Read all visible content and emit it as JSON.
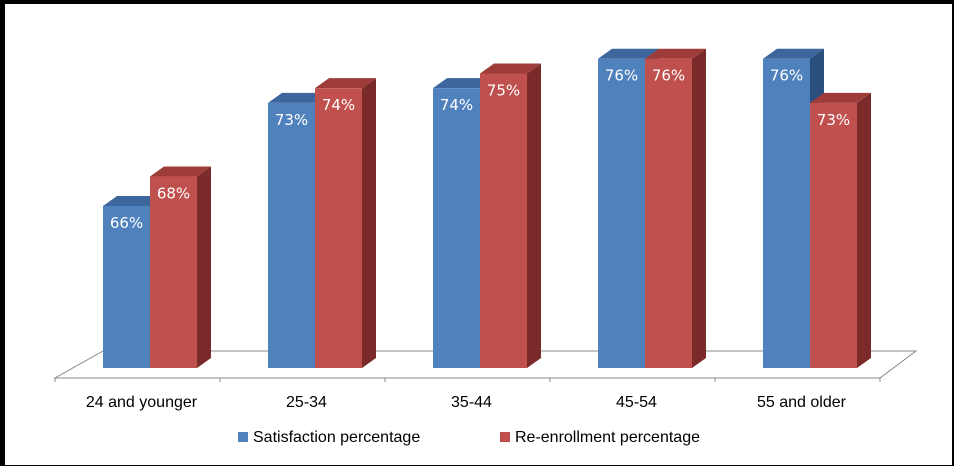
{
  "colors": {
    "satisfaction_front": "#4f81bd",
    "satisfaction_side": "#2a4f7d",
    "satisfaction_top": "#3d669c",
    "reenroll_front": "#c0504d",
    "reenroll_side": "#7a2b29",
    "reenroll_top": "#9e3c39"
  },
  "chart_data": {
    "type": "bar",
    "categories": [
      "24 and younger",
      "25-34",
      "35-44",
      "45-54",
      "55 and older"
    ],
    "series": [
      {
        "name": "Satisfaction percentage",
        "values": [
          66,
          73,
          74,
          76,
          76
        ],
        "labels": [
          "66%",
          "73%",
          "74%",
          "76%",
          "76%"
        ]
      },
      {
        "name": "Re-enrollment percentage",
        "values": [
          68,
          74,
          75,
          76,
          73
        ],
        "labels": [
          "68%",
          "74%",
          "75%",
          "76%",
          "73%"
        ]
      }
    ],
    "ylim": [
      55,
      77
    ],
    "grid": false,
    "legend": "bottom",
    "style": "3d-clustered-column"
  }
}
